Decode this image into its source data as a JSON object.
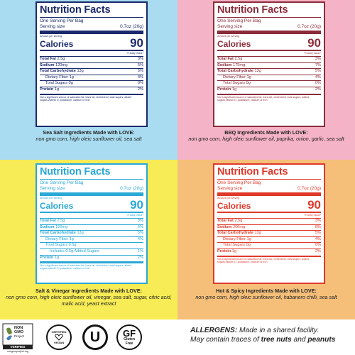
{
  "panels": [
    {
      "title": "Nutrition Facts",
      "servings": "One Serving Per Bag",
      "serving_label": "Serving size",
      "serving_value": "0.7oz (20g)",
      "amount_per": "Amount per serving",
      "calories_label": "Calories",
      "calories_value": "90",
      "dv_header": "% Daily Value*",
      "nutrients": [
        {
          "name": "Total Fat",
          "amount": "2.5g",
          "dv": "3%",
          "bold": true,
          "indent": 0
        },
        {
          "name": "Sodium",
          "amount": "120mg",
          "dv": "5%",
          "bold": true,
          "indent": 0
        },
        {
          "name": "Total Carbohydrate",
          "amount": "13g",
          "dv": "5%",
          "bold": true,
          "indent": 0
        },
        {
          "name": "Dietary Fiber",
          "amount": "1g",
          "dv": "4%",
          "bold": false,
          "indent": 1
        },
        {
          "name": "Total Sugars",
          "amount": "0g",
          "dv": "0%",
          "bold": false,
          "indent": 1
        },
        {
          "name": "Protein",
          "amount": "1g",
          "dv": "2%",
          "bold": true,
          "indent": 0
        }
      ],
      "footnote": "Not a significant source of saturated fat, trans fat, cholesterol, total sugars, added sugars,vitamin D, potassium, calcium or iron",
      "ing_heading": "Sea Salt Ingredients Made with LOVE:",
      "ing_body": "non gmo corn, high oleic sunflower oil, sea salt"
    },
    {
      "title": "Nutrition Facts",
      "servings": "One Serving Per Bag",
      "serving_label": "Serving size",
      "serving_value": "0.7oz (20g)",
      "amount_per": "Amount per serving",
      "calories_label": "Calories",
      "calories_value": "90",
      "dv_header": "% Daily Value*",
      "nutrients": [
        {
          "name": "Total Fat",
          "amount": "2.5g",
          "dv": "3%",
          "bold": true,
          "indent": 0
        },
        {
          "name": "Sodium",
          "amount": "175mg",
          "dv": "7%",
          "bold": true,
          "indent": 0
        },
        {
          "name": "Total Carbohydrate",
          "amount": "13g",
          "dv": "5%",
          "bold": true,
          "indent": 0
        },
        {
          "name": "Dietary Fiber",
          "amount": "1g",
          "dv": "4%",
          "bold": false,
          "indent": 1
        },
        {
          "name": "Total Sugars",
          "amount": "0g",
          "dv": "0%",
          "bold": false,
          "indent": 1
        },
        {
          "name": "Protein",
          "amount": "1g",
          "dv": "2%",
          "bold": true,
          "indent": 0
        }
      ],
      "footnote": "Not a significant source of saturated fat, trans fat, cholesterol, total sugars, added sugars,vitamin D, potassium, calcium or iron",
      "ing_heading": "BBQ Ingredients Made with LOVE:",
      "ing_body": "non gmo corn, high oleic sunflower oil, paprika, onion, garlic, sea salt"
    },
    {
      "title": "Nutrition Facts",
      "servings": "One Serving Per Bag",
      "serving_label": "Serving size",
      "serving_value": "0.7oz (20g)",
      "amount_per": "Amount per serving",
      "calories_label": "Calories",
      "calories_value": "90",
      "dv_header": "% Daily Value*",
      "nutrients": [
        {
          "name": "Total Fat",
          "amount": "2.5g",
          "dv": "3%",
          "bold": true,
          "indent": 0
        },
        {
          "name": "Sodium",
          "amount": "120mg",
          "dv": "5%",
          "bold": true,
          "indent": 0
        },
        {
          "name": "Total Carbohydrate",
          "amount": "13g",
          "dv": "5%",
          "bold": true,
          "indent": 0
        },
        {
          "name": "Dietary Fiber",
          "amount": "1g",
          "dv": "4%",
          "bold": false,
          "indent": 1
        },
        {
          "name": "Total Sugars",
          "amount": "0.5g",
          "dv": "",
          "bold": false,
          "indent": 1
        },
        {
          "name": "Includes 0.5g Added Sugars",
          "amount": "",
          "dv": "1%",
          "bold": false,
          "indent": 2
        },
        {
          "name": "Protein",
          "amount": "1g",
          "dv": "2%",
          "bold": true,
          "indent": 0
        }
      ],
      "footnote": "Not a significant source of saturated fat, trans fat, cholesterol, total sugars, added sugars,vitamin D, potassium, calcium or iron",
      "ing_heading": "Salt & Vinegar Ingredients Made with LOVE:",
      "ing_body": "non gmo corn, high oleic sunflower oil, vinegar, sea salt, sugar, citric acid, malic acid, yeast extract"
    },
    {
      "title": "Nutrition Facts",
      "servings": "One Serving Per Bag",
      "serving_label": "Serving size",
      "serving_value": "0.7oz (20g)",
      "amount_per": "Amount per serving",
      "calories_label": "Calories",
      "calories_value": "90",
      "dv_header": "% Daily Value*",
      "nutrients": [
        {
          "name": "Total Fat",
          "amount": "2.5g",
          "dv": "3%",
          "bold": true,
          "indent": 0
        },
        {
          "name": "Sodium",
          "amount": "200mg",
          "dv": "8%",
          "bold": true,
          "indent": 0
        },
        {
          "name": "Total Carbohydrate",
          "amount": "13g",
          "dv": "5%",
          "bold": true,
          "indent": 0
        },
        {
          "name": "Dietary Fiber",
          "amount": "1g",
          "dv": "4%",
          "bold": false,
          "indent": 1
        },
        {
          "name": "Total Sugars",
          "amount": "0g",
          "dv": "0%",
          "bold": false,
          "indent": 1
        },
        {
          "name": "Protein",
          "amount": "1g",
          "dv": "2%",
          "bold": true,
          "indent": 0
        }
      ],
      "footnote": "Not a significant source of saturated fat, trans fat, cholesterol, total sugars, added sugars,vitamin D, potassium, calcium or iron",
      "ing_heading": "Hot & Spicy Ingredients Made with LOVE:",
      "ing_body": "non gmo corn, high oleic sunflower oil, habanero chilli, sea salt"
    }
  ],
  "colors": {
    "sea_salt_bg": "#a9dcf0",
    "bbq_bg": "#f4b3c6",
    "salt_vinegar_bg": "#f7ec55",
    "hot_spicy_bg": "#f5bf7a",
    "sea_salt_ink": "#1b2a6b",
    "bbq_ink": "#8b2c3a",
    "salt_vinegar_ink": "#2aa8d6",
    "hot_spicy_ink": "#e0392a"
  },
  "badges": {
    "nongmo": {
      "line1": "NON",
      "line2": "GMO",
      "line3": "Project",
      "line4": "VERIFIED",
      "url": "nongmoproject.org",
      "icon": "non-gmo-butterfly-icon"
    },
    "vegan": {
      "top": "CERTIFIED",
      "bottom": "VEGAN",
      "icon": "vegan-heart-icon"
    },
    "ou": {
      "letter": "U",
      "icon": "kosher-ou-icon"
    },
    "gf": {
      "big": "GF",
      "line1": "Gluten",
      "line2": "Free",
      "icon": "gluten-free-icon"
    }
  },
  "allergen": {
    "label": "ALLERGENS:",
    "text1": " Made in a shared facility.",
    "text2": "May contain traces of ",
    "tree_nuts": "tree nuts",
    "and": " and ",
    "peanuts": "peanuts"
  }
}
